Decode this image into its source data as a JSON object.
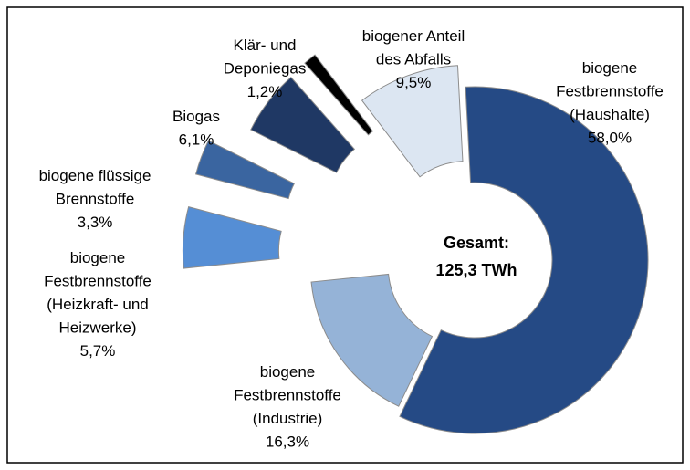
{
  "chart_data": {
    "type": "donut",
    "categories": [
      "biogene\nFestbrennstoffe\n(Haushalte)",
      "biogene\nFestbrennstoffe\n(Industrie)",
      "biogene\nFestbrennstoffe\n(Heizkraft- und\nHeizwerke)",
      "biogene flüssige\nBrennstoffe",
      "Biogas",
      "Klär- und\nDeponiegas",
      "biogener Anteil\ndes Abfalls"
    ],
    "values": [
      58.0,
      16.3,
      5.7,
      3.3,
      6.1,
      1.2,
      9.5
    ],
    "value_labels": [
      "58,0%",
      "16,3%",
      "5,7%",
      "3,3%",
      "6,1%",
      "1,2%",
      "9,5%"
    ],
    "colors": [
      "#254a85",
      "#95b3d7",
      "#558ed5",
      "#3a65a0",
      "#1f3864",
      "#000000",
      "#dce6f2"
    ],
    "center_label": [
      "Gesamt:",
      "125,3 TWh"
    ]
  }
}
